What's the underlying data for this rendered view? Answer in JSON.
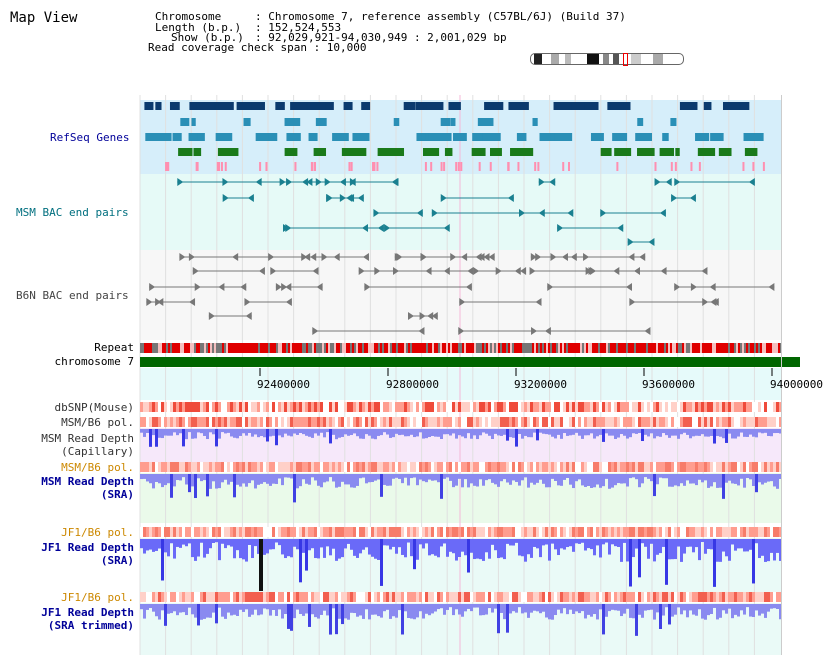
{
  "page": {
    "title": "Map View"
  },
  "header": {
    "chromosome_label": "Chromosome",
    "chromosome_value": ": Chromosome 7, reference assembly (C57BL/6J) (Build 37)",
    "length_label": "Length (b.p.)",
    "length_value": ": 152,524,553",
    "show_label": "Show (b.p.)",
    "show_value": ": 92,029,921-94,030,949 : 2,001,029 bp",
    "read_coverage": "Read coverage check span : 10,000"
  },
  "tracks": {
    "refseq": "RefSeq Genes",
    "msm_bac": "MSM BAC end pairs",
    "b6n_bac": "B6N BAC end pairs",
    "repeat": "Repeat",
    "chromosome": "chromosome 7",
    "dbsnp": "dbSNP(Mouse)",
    "msm_b6_pol_1": "MSM/B6 pol.",
    "msm_read_depth_cap_1": "MSM Read Depth",
    "msm_read_depth_cap_2": "(Capillary)",
    "msm_b6_pol_2": "MSM/B6 pol.",
    "msm_read_depth_sra_1": "MSM Read Depth",
    "msm_read_depth_sra_2": "(SRA)",
    "jf1_b6_pol_1": "JF1/B6 pol.",
    "jf1_read_depth_sra_1": "JF1 Read Depth",
    "jf1_read_depth_sra_2": "(SRA)",
    "jf1_b6_pol_2": "JF1/B6 pol.",
    "jf1_read_depth_trim_1": "JF1 Read Depth",
    "jf1_read_depth_trim_2": "(SRA trimmed)"
  },
  "axis": {
    "ticks": [
      "92400000",
      "92800000",
      "93200000",
      "93600000",
      "94000000"
    ]
  },
  "colors": {
    "refseq_bg": "#d6eefa",
    "msm_bac_bg": "#e6faf7",
    "b6n_bg": "#f7f7f7",
    "axis_bg": "#e6fafa",
    "repeat_red": "#e00000",
    "chromosome_green": "#006600",
    "label_blue": "#000099",
    "label_teal": "#006f7f",
    "label_orange": "#cc8800",
    "depth_blue": "#2222dd"
  }
}
